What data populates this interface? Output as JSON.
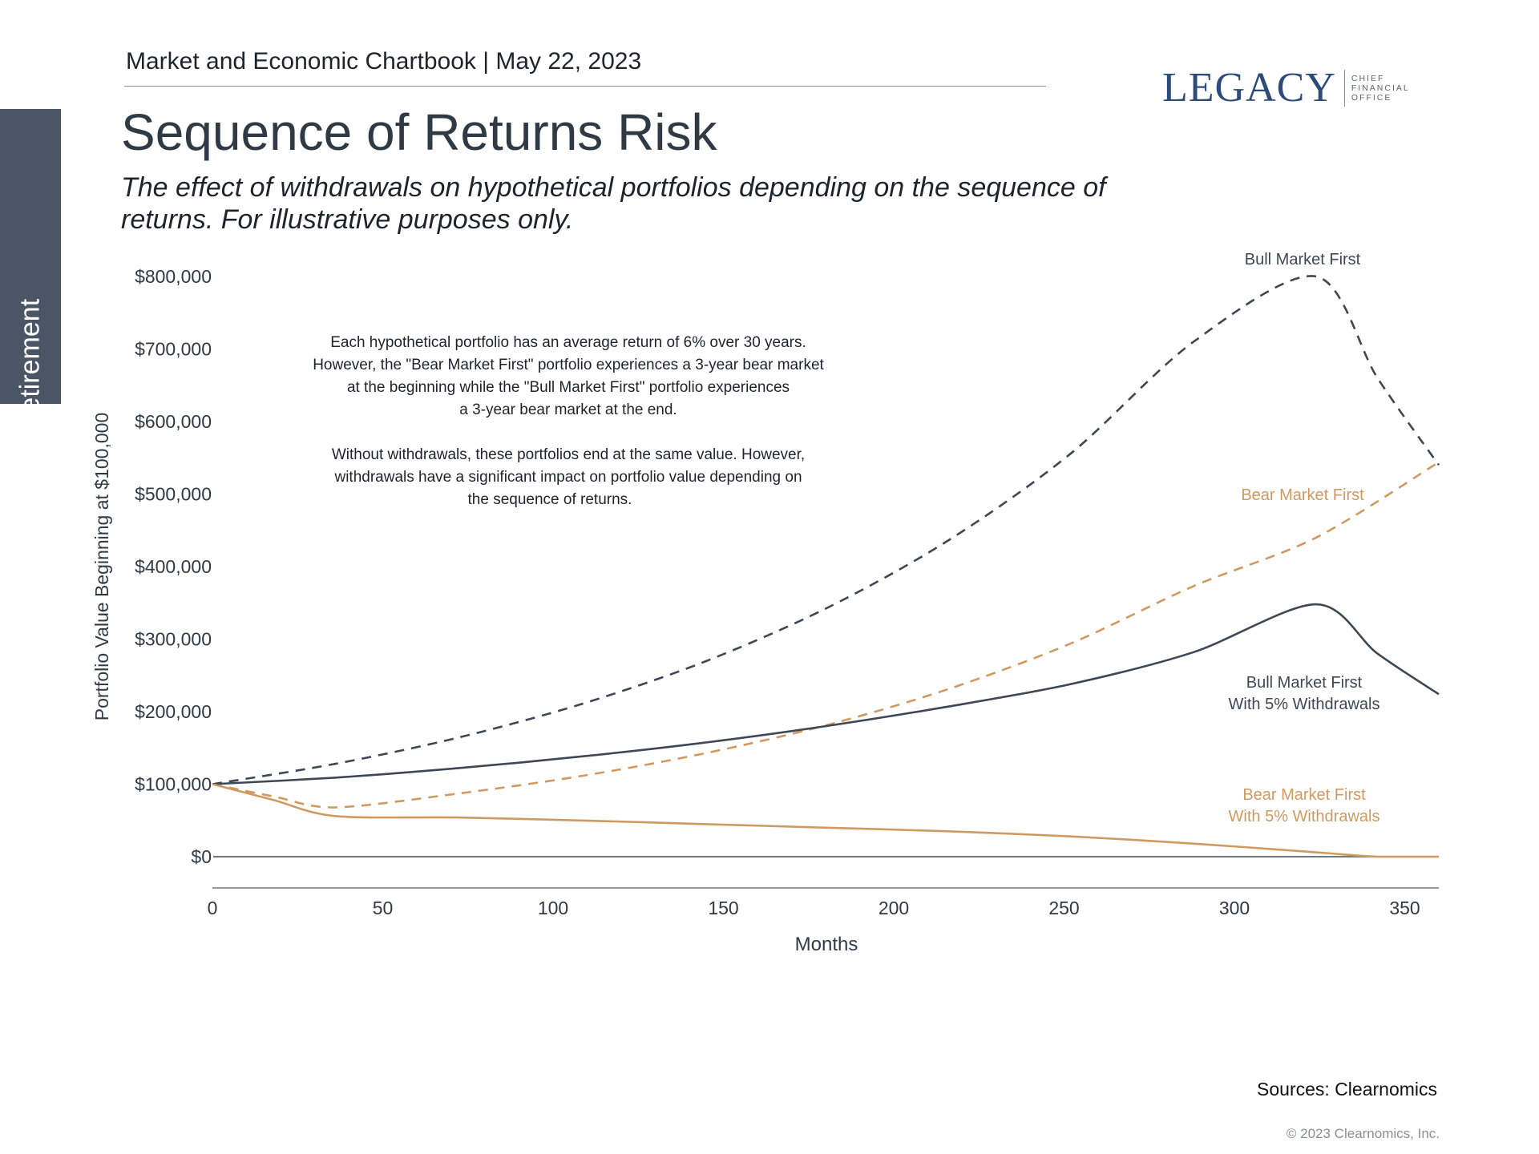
{
  "header": {
    "chartbook": "Market and Economic Chartbook | May 22, 2023",
    "logo_word": "LEGACY",
    "logo_sub": [
      "CHIEF",
      "FINANCIAL",
      "OFFICE"
    ]
  },
  "side_tab": {
    "label": "Retirement"
  },
  "title": "Sequence of Returns Risk",
  "subtitle": "The effect of withdrawals on hypothetical portfolios depending on the sequence of returns. For illustrative purposes only.",
  "annotation": {
    "para1": [
      "Each hypothetical portfolio has an average return of 6% over 30 years.",
      "However, the \"Bear Market First\" portfolio experiences a 3-year bear market",
      "at the beginning while the \"Bull Market First\" portfolio experiences",
      "a 3-year bear market at the end."
    ],
    "para2": [
      "Without withdrawals, these portfolios end at the same value. However,",
      "withdrawals have a significant impact on portfolio value depending on",
      "the sequence of returns."
    ]
  },
  "colors": {
    "navy": "#3d4854",
    "orange": "#cf9a62",
    "zero_line": "#6f7780",
    "text": "#2f3a45"
  },
  "chart_data": {
    "type": "line",
    "xlabel": "Months",
    "ylabel": "Portfolio Value Beginning at $100,000",
    "xlim": [
      0,
      360
    ],
    "ylim": [
      0,
      800000
    ],
    "x_ticks": [
      0,
      50,
      100,
      150,
      200,
      250,
      300,
      350
    ],
    "x_tick_labels": [
      "0",
      "50",
      "100",
      "150",
      "200",
      "250",
      "300",
      "350"
    ],
    "y_ticks": [
      0,
      100000,
      200000,
      300000,
      400000,
      500000,
      600000,
      700000,
      800000
    ],
    "y_tick_labels": [
      "$0",
      "$100,000",
      "$200,000",
      "$300,000",
      "$400,000",
      "$500,000",
      "$600,000",
      "$700,000",
      "$800,000"
    ],
    "series": [
      {
        "name": "Bull Market First",
        "label_lines": [
          "Bull Market First"
        ],
        "color": "#3d4854",
        "dash": true,
        "points": [
          [
            0,
            100000
          ],
          [
            36,
            128000
          ],
          [
            72,
            164000
          ],
          [
            108,
            210000
          ],
          [
            144,
            268000
          ],
          [
            180,
            342000
          ],
          [
            216,
            436000
          ],
          [
            252,
            556000
          ],
          [
            288,
            710000
          ],
          [
            324,
            800000
          ],
          [
            342,
            660000
          ],
          [
            360,
            540000
          ]
        ]
      },
      {
        "name": "Bear Market First",
        "label_lines": [
          "Bear Market First"
        ],
        "color": "#cf9a62",
        "dash": true,
        "points": [
          [
            0,
            100000
          ],
          [
            18,
            83000
          ],
          [
            36,
            68000
          ],
          [
            72,
            87000
          ],
          [
            108,
            111000
          ],
          [
            144,
            142000
          ],
          [
            180,
            181000
          ],
          [
            216,
            231000
          ],
          [
            252,
            294000
          ],
          [
            288,
            373000
          ],
          [
            324,
            440000
          ],
          [
            360,
            544000
          ]
        ]
      },
      {
        "name": "Bull Market First With 5% Withdrawals",
        "label_lines": [
          "Bull Market First",
          "With 5% Withdrawals"
        ],
        "color": "#3d4854",
        "dash": false,
        "points": [
          [
            0,
            100000
          ],
          [
            36,
            109000
          ],
          [
            72,
            122000
          ],
          [
            108,
            138000
          ],
          [
            144,
            157000
          ],
          [
            180,
            180000
          ],
          [
            216,
            207000
          ],
          [
            252,
            238000
          ],
          [
            288,
            282000
          ],
          [
            324,
            348000
          ],
          [
            342,
            280000
          ],
          [
            360,
            224000
          ]
        ]
      },
      {
        "name": "Bear Market First With 5% Withdrawals",
        "label_lines": [
          "Bear Market First",
          "With 5% Withdrawals"
        ],
        "color": "#cf9a62",
        "dash": false,
        "points": [
          [
            0,
            100000
          ],
          [
            18,
            78000
          ],
          [
            36,
            56000
          ],
          [
            72,
            54000
          ],
          [
            108,
            50000
          ],
          [
            144,
            45000
          ],
          [
            180,
            40000
          ],
          [
            216,
            35000
          ],
          [
            252,
            28000
          ],
          [
            288,
            18000
          ],
          [
            324,
            6000
          ],
          [
            342,
            0
          ],
          [
            360,
            0
          ]
        ]
      }
    ]
  },
  "sources": "Sources: Clearnomics",
  "copyright": "© 2023 Clearnomics, Inc."
}
